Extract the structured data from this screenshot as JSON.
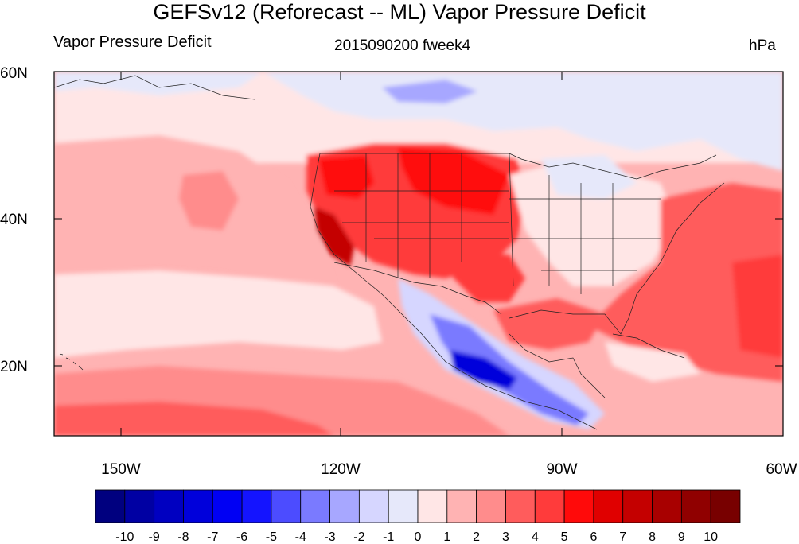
{
  "title": "GEFSv12 (Reforecast -- ML) Vapor Pressure Deficit",
  "left_string": "Vapor Pressure Deficit",
  "center_string": "2015090200 fweek4",
  "right_string": "hPa",
  "map": {
    "projection": "cylindrical equidistant",
    "lon_range": [
      -160,
      -60
    ],
    "lat_range": [
      10,
      60
    ],
    "lat_ticks": [
      "60N",
      "40N",
      "20N"
    ],
    "lon_ticks": [
      "150W",
      "120W",
      "90W",
      "60W"
    ],
    "boundaries": "coastlines, US states, countries"
  },
  "colorbar": {
    "labels": [
      "-10",
      "-9",
      "-8",
      "-7",
      "-6",
      "-5",
      "-4",
      "-3",
      "-2",
      "-1",
      "0",
      "1",
      "2",
      "3",
      "4",
      "5",
      "6",
      "7",
      "8",
      "9",
      "10"
    ],
    "colors": [
      "#00007f",
      "#0000a3",
      "#0000c1",
      "#0000db",
      "#0000f4",
      "#1414ff",
      "#4c4cff",
      "#7a7aff",
      "#a7a7ff",
      "#d6d6ff",
      "#e6e8fa",
      "#ffe6e6",
      "#ffb3b3",
      "#ff8c8c",
      "#ff5c5c",
      "#ff3b3b",
      "#ff0a0a",
      "#e00000",
      "#c40000",
      "#a80000",
      "#900000",
      "#780000"
    ]
  }
}
